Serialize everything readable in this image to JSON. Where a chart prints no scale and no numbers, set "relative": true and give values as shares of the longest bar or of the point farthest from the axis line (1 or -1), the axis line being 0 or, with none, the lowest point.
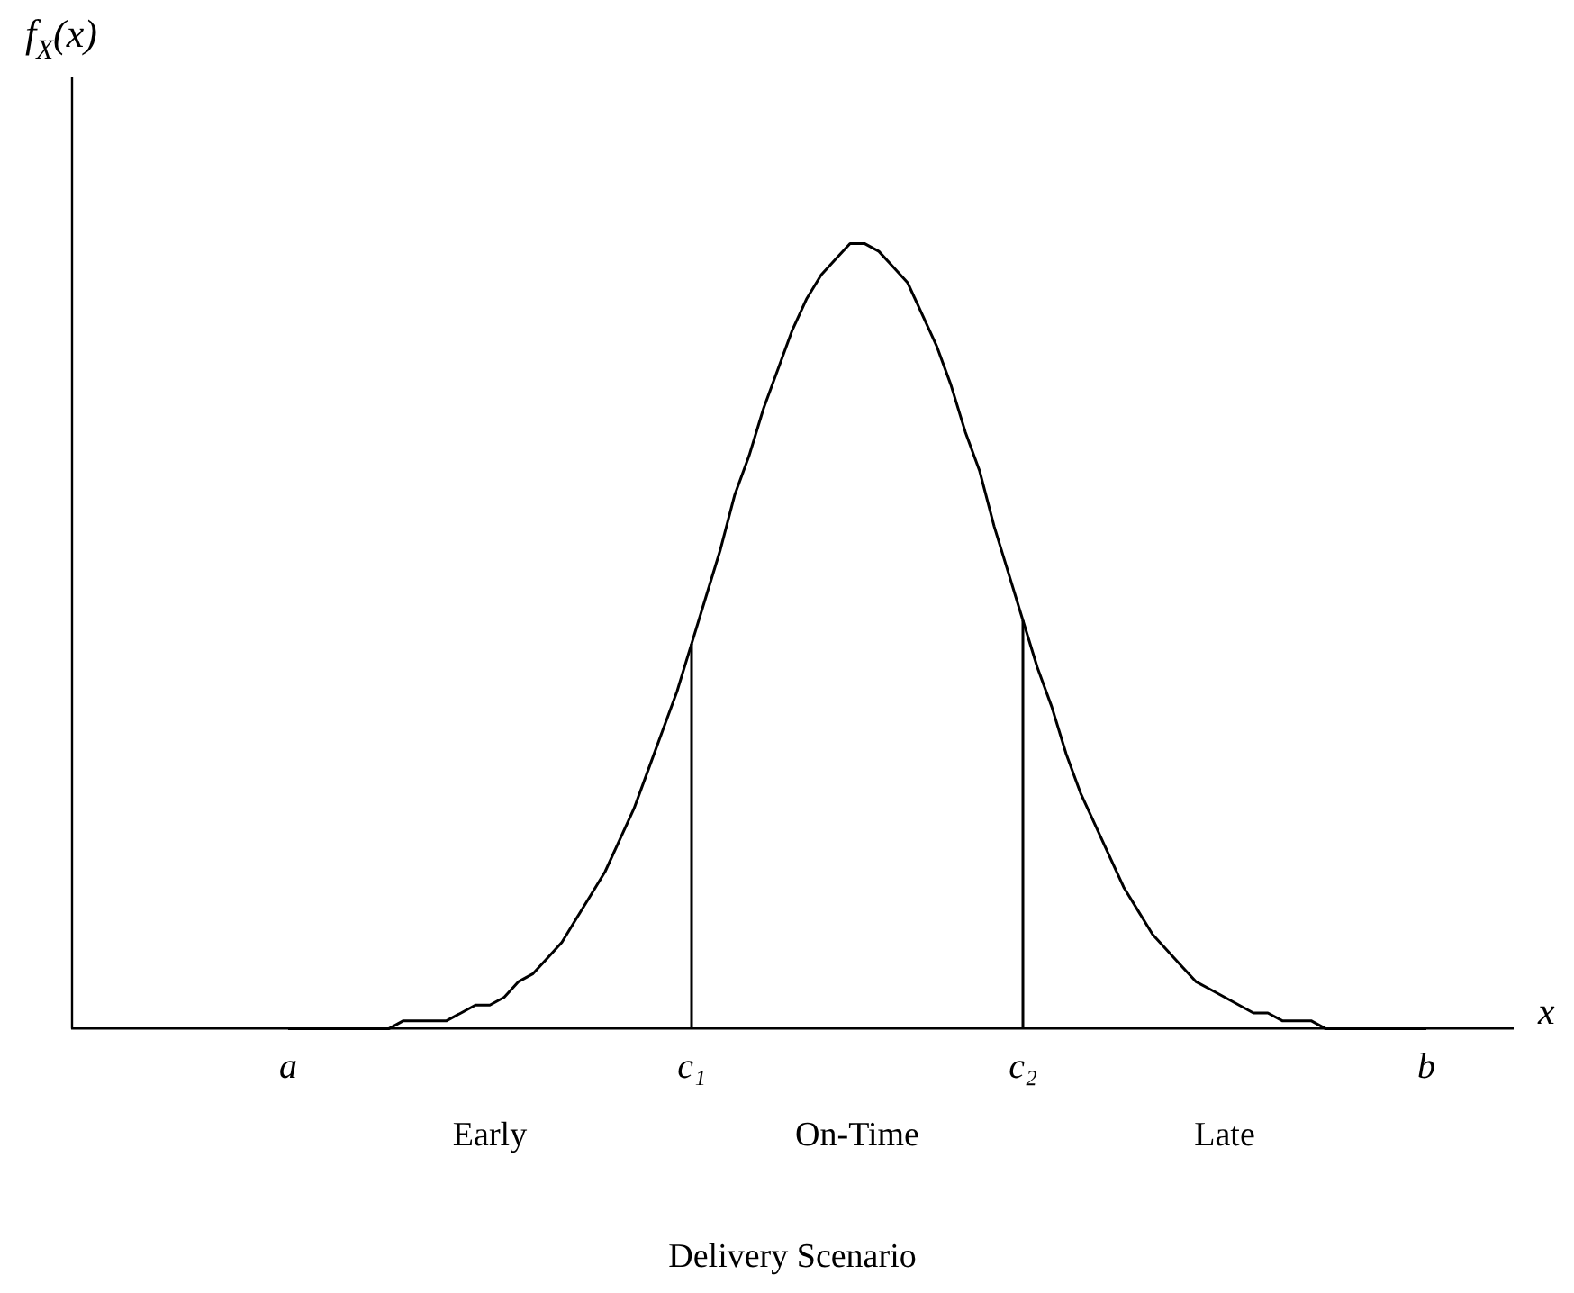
{
  "chart_data": {
    "type": "line",
    "relative": true,
    "title": "Delivery Scenario",
    "xlabel": "x",
    "ylabel": "f$_{X}$(x)",
    "categories": [
      null,
      null,
      null,
      null,
      null,
      null,
      null,
      null,
      null,
      null,
      null,
      null,
      null,
      null,
      null,
      "a",
      null,
      null,
      null,
      null,
      null,
      null,
      null,
      null,
      null,
      null,
      null,
      null,
      null,
      null,
      null,
      null,
      null,
      null,
      null,
      null,
      null,
      null,
      null,
      null,
      null,
      null,
      null,
      "c₁",
      null,
      null,
      null,
      null,
      null,
      null,
      null,
      null,
      null,
      null,
      null,
      null,
      null,
      null,
      null,
      null,
      null,
      null,
      null,
      null,
      null,
      null,
      "c₂",
      null,
      null,
      null,
      null,
      null,
      null,
      null,
      null,
      null,
      null,
      null,
      null,
      null,
      null,
      null,
      null,
      null,
      null,
      null,
      null,
      null,
      null,
      null,
      null,
      null,
      null,
      null,
      "b",
      null,
      null,
      null,
      null,
      null,
      null
    ],
    "series": [
      {
        "color": "#000000",
        "values": [
          null,
          null,
          null,
          null,
          null,
          null,
          null,
          null,
          null,
          null,
          null,
          null,
          null,
          null,
          null,
          0.0,
          0.0,
          0.0,
          0.0,
          0.0,
          0.0,
          0.0,
          0.0,
          0.01,
          0.01,
          0.01,
          0.01,
          0.02,
          0.03,
          0.03,
          0.04,
          0.06,
          0.07,
          0.09,
          0.11,
          0.14,
          0.17,
          0.2,
          0.24,
          0.28,
          0.33,
          0.38,
          0.43,
          0.49,
          0.55,
          0.61,
          0.68,
          0.73,
          0.79,
          0.84,
          0.89,
          0.93,
          0.96,
          0.98,
          1.0,
          1.0,
          0.99,
          0.97,
          0.95,
          0.91,
          0.87,
          0.82,
          0.76,
          0.71,
          0.64,
          0.58,
          0.52,
          0.46,
          0.41,
          0.35,
          0.3,
          0.26,
          0.22,
          0.18,
          0.15,
          0.12,
          0.1,
          0.08,
          0.06,
          0.05,
          0.04,
          0.03,
          0.02,
          0.02,
          0.01,
          0.01,
          0.01,
          0.0,
          0.0,
          0.0,
          0.0,
          0.0,
          0.0,
          0.0,
          0.0,
          null,
          null,
          null,
          null,
          null,
          null
        ]
      }
    ],
    "ref_lines": [
      {
        "axis": "x",
        "value": "c₁",
        "color": "#000000"
      },
      {
        "axis": "x",
        "value": "c₂",
        "color": "#000000"
      }
    ],
    "annotations": [
      "Early",
      "On-Time",
      "Late"
    ]
  }
}
